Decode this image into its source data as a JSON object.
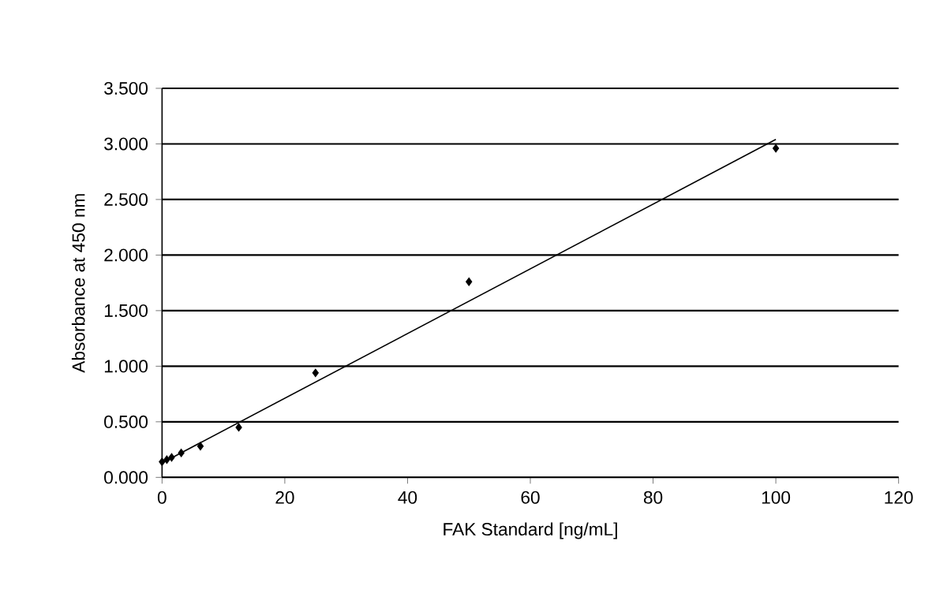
{
  "chart_data": {
    "type": "scatter",
    "xlabel": "FAK Standard [ng/mL]",
    "ylabel": "Absorbance at 450 nm",
    "xlim": [
      0,
      120
    ],
    "xticks": [
      0,
      20,
      40,
      60,
      80,
      100,
      120
    ],
    "ylim": [
      0,
      3.5
    ],
    "yticks": [
      {
        "value": 0,
        "label": "0.000"
      },
      {
        "value": 0.5,
        "label": "0.500"
      },
      {
        "value": 1,
        "label": "1.000"
      },
      {
        "value": 1.5,
        "label": "1.500"
      },
      {
        "value": 2,
        "label": "2.000"
      },
      {
        "value": 2.5,
        "label": "2.500"
      },
      {
        "value": 3,
        "label": "3.000"
      },
      {
        "value": 3.5,
        "label": "3.500"
      }
    ],
    "grid": "y",
    "series": [
      {
        "marker": "diamond",
        "color": "#000000",
        "x": [
          0,
          0.78,
          1.56,
          3.125,
          6.25,
          12.5,
          25,
          50,
          100
        ],
        "values": [
          0.14,
          0.16,
          0.18,
          0.22,
          0.28,
          0.45,
          0.94,
          1.76,
          2.96
        ]
      },
      {
        "type": "line",
        "color": "#000000",
        "line_style": "solid",
        "x": [
          0,
          100
        ],
        "values": [
          0.13,
          3.04
        ]
      }
    ]
  }
}
